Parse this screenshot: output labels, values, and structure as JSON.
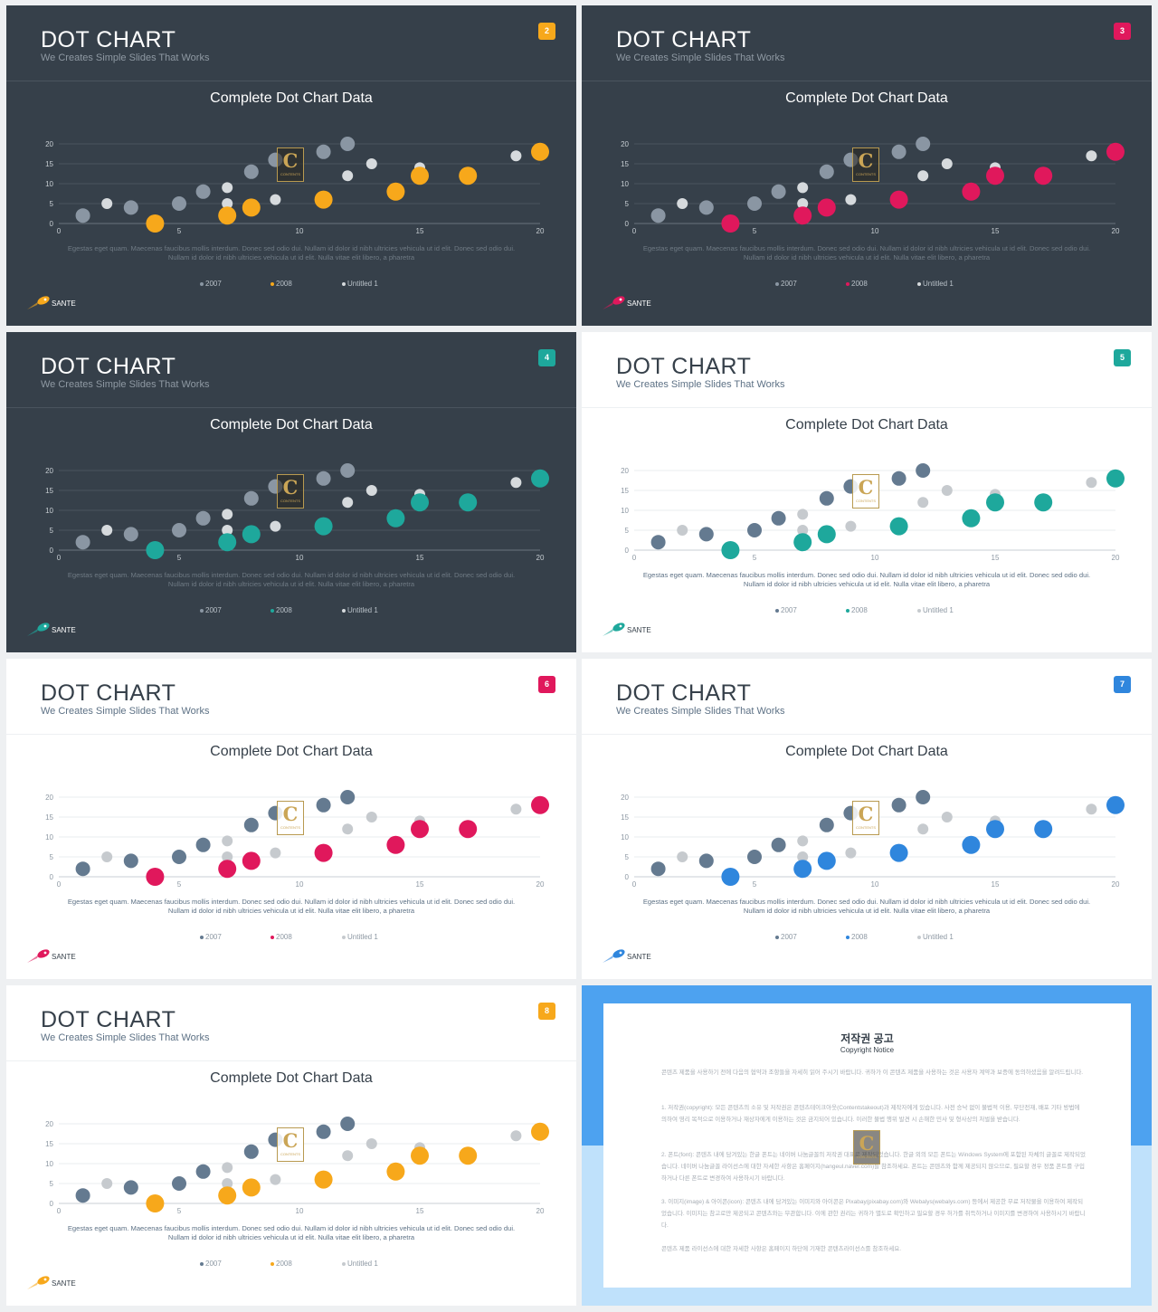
{
  "slide_common": {
    "title": "DOT CHART",
    "subtitle": "We Creates Simple Slides That Works",
    "chart_title": "Complete Dot Chart Data",
    "description_line1": "Egestas eget quam. Maecenas faucibus mollis interdum. Donec sed odio dui. Nullam id dolor id nibh ultricies vehicula ut id elit. Donec sed odio dui.",
    "description_line2": "Nullam id dolor id nibh ultricies vehicula ut id elit. Nulla vitae elit libero, a pharetra",
    "brand": "SANTE",
    "watermark_letter": "C",
    "watermark_text": "CONTENTS"
  },
  "slides": [
    {
      "number": "2",
      "theme": "dark",
      "accent": "#f7a81b"
    },
    {
      "number": "3",
      "theme": "dark",
      "accent": "#e0185c"
    },
    {
      "number": "4",
      "theme": "dark",
      "accent": "#1ea89c"
    },
    {
      "number": "5",
      "theme": "light",
      "accent": "#1ea89c"
    },
    {
      "number": "6",
      "theme": "light",
      "accent": "#e0185c"
    },
    {
      "number": "7",
      "theme": "light",
      "accent": "#2f86dd"
    },
    {
      "number": "8",
      "theme": "light",
      "accent": "#f7a81b"
    }
  ],
  "chart_data": {
    "type": "scatter",
    "title": "Complete Dot Chart Data",
    "xlim": [
      0,
      20
    ],
    "ylim": [
      0,
      20
    ],
    "x_ticks": [
      0,
      5,
      10,
      15,
      20
    ],
    "y_ticks": [
      0,
      5,
      10,
      15,
      20
    ],
    "grid": true,
    "legend_position": "bottom",
    "series": [
      {
        "name": "2007",
        "color_dark": "#8a96a3",
        "color_light": "#647a90",
        "points": [
          [
            1,
            2
          ],
          [
            3,
            4
          ],
          [
            5,
            5
          ],
          [
            6,
            8
          ],
          [
            8,
            13
          ],
          [
            9,
            16
          ],
          [
            11,
            18
          ],
          [
            12,
            20
          ]
        ]
      },
      {
        "name": "2008",
        "color": "accent",
        "points": [
          [
            4,
            0
          ],
          [
            7,
            2
          ],
          [
            8,
            4
          ],
          [
            11,
            6
          ],
          [
            14,
            8
          ],
          [
            15,
            12
          ],
          [
            17,
            12
          ],
          [
            20,
            18
          ]
        ]
      },
      {
        "name": "Untitled 1",
        "color_dark": "#d6dadd",
        "color_light": "#c6cace",
        "points": [
          [
            2,
            5
          ],
          [
            7,
            5
          ],
          [
            7,
            9
          ],
          [
            9,
            6
          ],
          [
            12,
            12
          ],
          [
            13,
            15
          ],
          [
            15,
            14
          ],
          [
            19,
            17
          ]
        ]
      }
    ]
  },
  "copyright": {
    "title": "저작권 공고",
    "subtitle": "Copyright Notice",
    "intro": "콘텐츠 제품을 사용하기 전에 다음의 협약과 조항들을 자세히 읽어 주시기 바랍니다. 귀하가 이 콘텐츠 제품을 사용하는 것은 사용자 계약과 보증에 동의하셨음을 알려드립니다.",
    "section1": "1. 저작권(copyright): 모든 콘텐츠의 소유 및 저작권은 콘텐츠테이크아웃(Contentstakeout)과 제작자에게 있습니다. 사전 승낙 없이 불법적 이용, 무단전재, 배포 기타 방법에 의하여 영리 목적으로 이용하거나 재상자에게 이용하는 것은 금지되어 있습니다. 이러한 불법 행위 발견 시 손해한 민사 및 형사상의 처벌을 받습니다.",
    "section2": "2. 폰트(font): 콘텐츠 내에 담겨있는 한글 폰트는 네이버 나눔글꼴의 저작권 대표로 제작되었습니다. 한글 외의 모든 폰트는 Windows System에 포함된 자체의 글꼴로 제작되었습니다. 네이버 나눔글꼴 라이선스에 대한 자세한 사항은 홈페이지(hangeul.naver.com)를 참조하세요. 폰트는 콘텐츠와 함께 제공되지 않으므로, 필요할 경우 정품 폰트를 구입하거나 다른 폰트로 변경하여 사용하시기 바랍니다.",
    "section3": "3. 이미지(image) & 아이콘(icon): 콘텐츠 내에 담겨있는 이미지와 아이콘은 Pixabay(pixabay.com)와 Webalys(webalys.com) 등에서 제공한 무료 저작물을 이용하여 제작되었습니다. 이미지는 참고로만 제공되고 콘텐츠와는 무관합니다. 이에 관한 권리는 귀하가 별도로 확인하고 필요할 경우 허가를 취득하거나 이미지를 변경하여 사용하시기 바랍니다.",
    "outro": "콘텐츠 제품 라이선스에 대한 자세한 사항은 홈페이지 하단에 기재한 콘텐츠라이선스를 참조하세요."
  }
}
